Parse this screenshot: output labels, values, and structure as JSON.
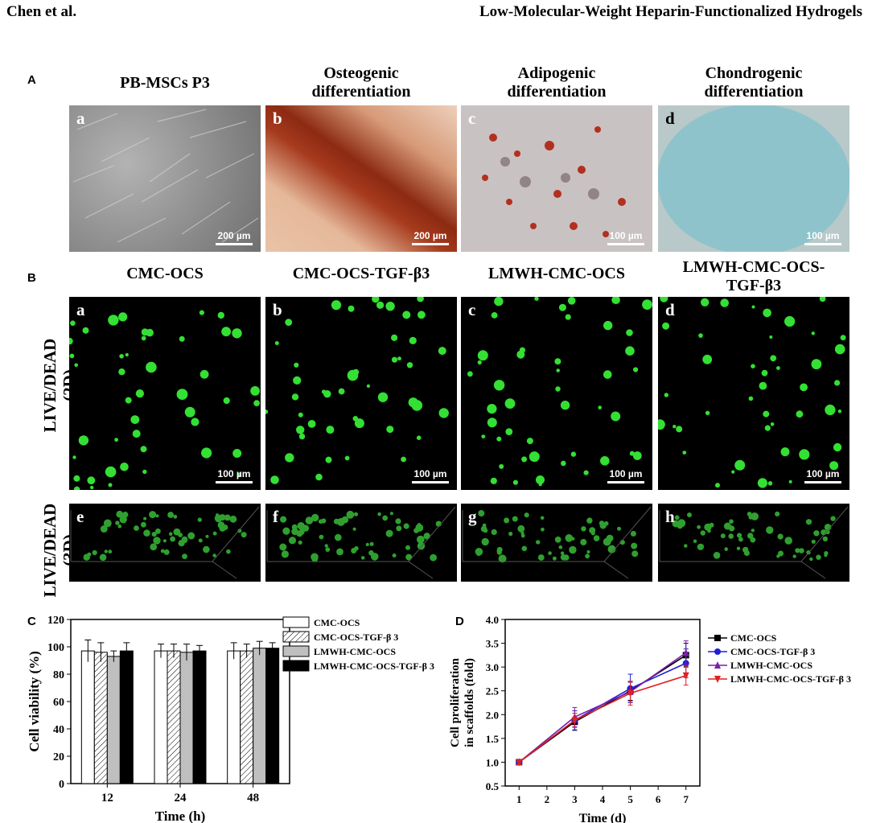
{
  "header": {
    "left": "Chen et al.",
    "right": "Low-Molecular-Weight Heparin-Functionalized Hydrogels"
  },
  "panel_A": {
    "label": "A",
    "columns": [
      {
        "title_1": "PB-MSCs P3",
        "title_2": "",
        "letter": "a",
        "scale": "200 µm"
      },
      {
        "title_1": "Osteogenic",
        "title_2": "differentiation",
        "letter": "b",
        "scale": "200 µm"
      },
      {
        "title_1": "Adipogenic",
        "title_2": "differentiation",
        "letter": "c",
        "scale": "100 µm"
      },
      {
        "title_1": "Chondrogenic",
        "title_2": "differentiation",
        "letter": "d",
        "scale": "100 µm"
      }
    ]
  },
  "panel_B": {
    "label": "B",
    "columns": [
      {
        "title_1": "CMC-OCS",
        "title_2": ""
      },
      {
        "title_1": "CMC-OCS-TGF-β3",
        "title_2": ""
      },
      {
        "title_1": "LMWH-CMC-OCS",
        "title_2": ""
      },
      {
        "title_1": "LMWH-CMC-OCS-",
        "title_2": "TGF-β3"
      }
    ],
    "row_2d": {
      "line1": "LIVE/DEAD",
      "line2": "(2D)",
      "letters": [
        "a",
        "b",
        "c",
        "d"
      ],
      "scale": "100 µm"
    },
    "row_3d": {
      "line1": "LIVE/DEAD",
      "line2": "(3D)",
      "letters": [
        "e",
        "f",
        "g",
        "h"
      ]
    }
  },
  "chart_data": [
    {
      "panel": "C",
      "type": "bar",
      "xlabel": "Time (h)",
      "ylabel": "Cell viability (%)",
      "categories": [
        "12",
        "24",
        "48"
      ],
      "ylim": [
        0,
        120
      ],
      "yticks": [
        "0",
        "20",
        "40",
        "60",
        "80",
        "100",
        "120"
      ],
      "legend_position": "right",
      "series": [
        {
          "name": "CMC-OCS",
          "style": "white",
          "values": [
            97,
            97,
            97
          ],
          "errors": [
            8,
            5,
            6
          ]
        },
        {
          "name": "CMC-OCS-TGF-β 3",
          "style": "hatched",
          "values": [
            96,
            97,
            97
          ],
          "errors": [
            7,
            5,
            5
          ]
        },
        {
          "name": "LMWH-CMC-OCS",
          "style": "gray",
          "values": [
            93,
            96,
            99
          ],
          "errors": [
            4,
            6,
            5
          ]
        },
        {
          "name": "LMWH-CMC-OCS-TGF-β 3",
          "style": "black",
          "values": [
            97,
            97,
            99
          ],
          "errors": [
            6,
            4,
            4
          ]
        }
      ]
    },
    {
      "panel": "D",
      "type": "line",
      "xlabel": "Time (d)",
      "ylabel_1": "Cell proliferation",
      "ylabel_2": "in scaffolds (fold)",
      "x": [
        1,
        3,
        5,
        7
      ],
      "xticks": [
        "1",
        "2",
        "3",
        "4",
        "5",
        "6",
        "7"
      ],
      "yticks": [
        "0.5",
        "1.0",
        "1.5",
        "2.0",
        "2.5",
        "3.0",
        "3.5",
        "4.0"
      ],
      "xlim": [
        0.5,
        7.5
      ],
      "ylim": [
        0.5,
        4.0
      ],
      "legend_position": "right",
      "series": [
        {
          "name": "CMC-OCS",
          "color": "#000000",
          "marker": "square",
          "values": [
            1.0,
            1.85,
            2.5,
            3.25
          ],
          "errors": [
            0.05,
            0.18,
            0.2,
            0.25
          ]
        },
        {
          "name": "CMC-OCS-TGF-β 3",
          "color": "#1f1fd6",
          "marker": "circle",
          "values": [
            1.0,
            1.88,
            2.55,
            3.08
          ],
          "errors": [
            0.05,
            0.2,
            0.3,
            0.3
          ]
        },
        {
          "name": "LMWH-CMC-OCS",
          "color": "#7a1fa8",
          "marker": "triangle-up",
          "values": [
            1.0,
            1.95,
            2.48,
            3.3
          ],
          "errors": [
            0.05,
            0.2,
            0.2,
            0.25
          ]
        },
        {
          "name": "LMWH-CMC-OCS-TGF-β 3",
          "color": "#e02020",
          "marker": "triangle-down",
          "values": [
            1.0,
            1.88,
            2.45,
            2.82
          ],
          "errors": [
            0.05,
            0.15,
            0.25,
            0.2
          ]
        }
      ]
    }
  ]
}
